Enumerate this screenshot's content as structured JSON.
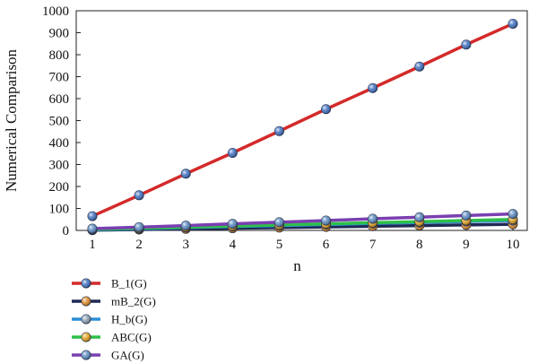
{
  "chart_data": {
    "type": "line",
    "title": "",
    "xlabel": "n",
    "ylabel": "Numerical Comparison",
    "x": [
      1,
      2,
      3,
      4,
      5,
      6,
      7,
      8,
      9,
      10
    ],
    "xlim": [
      1,
      10
    ],
    "ylim": [
      0,
      1000
    ],
    "yticks": [
      0,
      100,
      200,
      300,
      400,
      500,
      600,
      700,
      800,
      900,
      1000
    ],
    "grid": false,
    "legend_position": "bottom-left",
    "series": [
      {
        "name": "B_1(G)",
        "color": "#d42a2a",
        "marker_color": "#3f6fc0",
        "values": [
          65,
          160,
          258,
          353,
          452,
          552,
          648,
          746,
          846,
          941
        ]
      },
      {
        "name": "mB_2(G)",
        "color": "#1f2a55",
        "marker_color": "#e08a2a",
        "values": [
          1,
          4,
          7,
          10,
          13,
          16,
          19,
          22,
          25,
          28
        ]
      },
      {
        "name": "H_b(G)",
        "color": "#2c8fd6",
        "marker_color": "#8aa0b0",
        "values": [
          3,
          8,
          13,
          18,
          22,
          27,
          32,
          36,
          41,
          45
        ]
      },
      {
        "name": "ABC(G)",
        "color": "#2fbf4a",
        "marker_color": "#e0a020",
        "values": [
          5,
          10,
          15,
          20,
          25,
          30,
          35,
          40,
          45,
          50
        ]
      },
      {
        "name": "GA(G)",
        "color": "#7a3fb0",
        "marker_color": "#5a8ac0",
        "values": [
          8,
          15,
          22,
          30,
          37,
          45,
          53,
          60,
          68,
          75
        ]
      }
    ]
  }
}
